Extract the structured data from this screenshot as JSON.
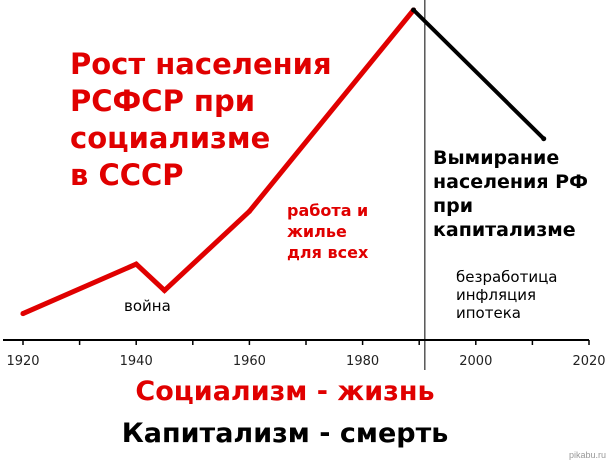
{
  "chart_data": {
    "type": "line",
    "title": "",
    "xlabel": "",
    "ylabel": "",
    "xlim": [
      1920,
      2020
    ],
    "ylim": [
      0,
      100
    ],
    "x_ticks": [
      "1920",
      "1940",
      "1960",
      "1980",
      "2000",
      "2020"
    ],
    "grid": false,
    "divider_year": 1991,
    "series": [
      {
        "color": "#e00000",
        "x": [
          1920,
          1940,
          1945,
          1960,
          1989
        ],
        "y": [
          8,
          23,
          15,
          39,
          100
        ]
      },
      {
        "color": "#000000",
        "x": [
          1989,
          2012
        ],
        "y": [
          100,
          61
        ]
      }
    ],
    "annotations": {
      "socialism_title": [
        "Рост населения",
        "РСФСР при",
        "социализме",
        "в СССР"
      ],
      "socialism_note": [
        "работа и",
        "жилье",
        "для всех"
      ],
      "war": "война",
      "capitalism_title": [
        "Вымирание",
        "населения РФ",
        "при",
        "капитализме"
      ],
      "capitalism_note": [
        "безработица",
        "инфляция",
        "ипотека"
      ]
    }
  },
  "slogans": {
    "line1": "Социализм - жизнь",
    "line2": "Капитализм - смерть"
  },
  "watermark": "pikabu.ru"
}
